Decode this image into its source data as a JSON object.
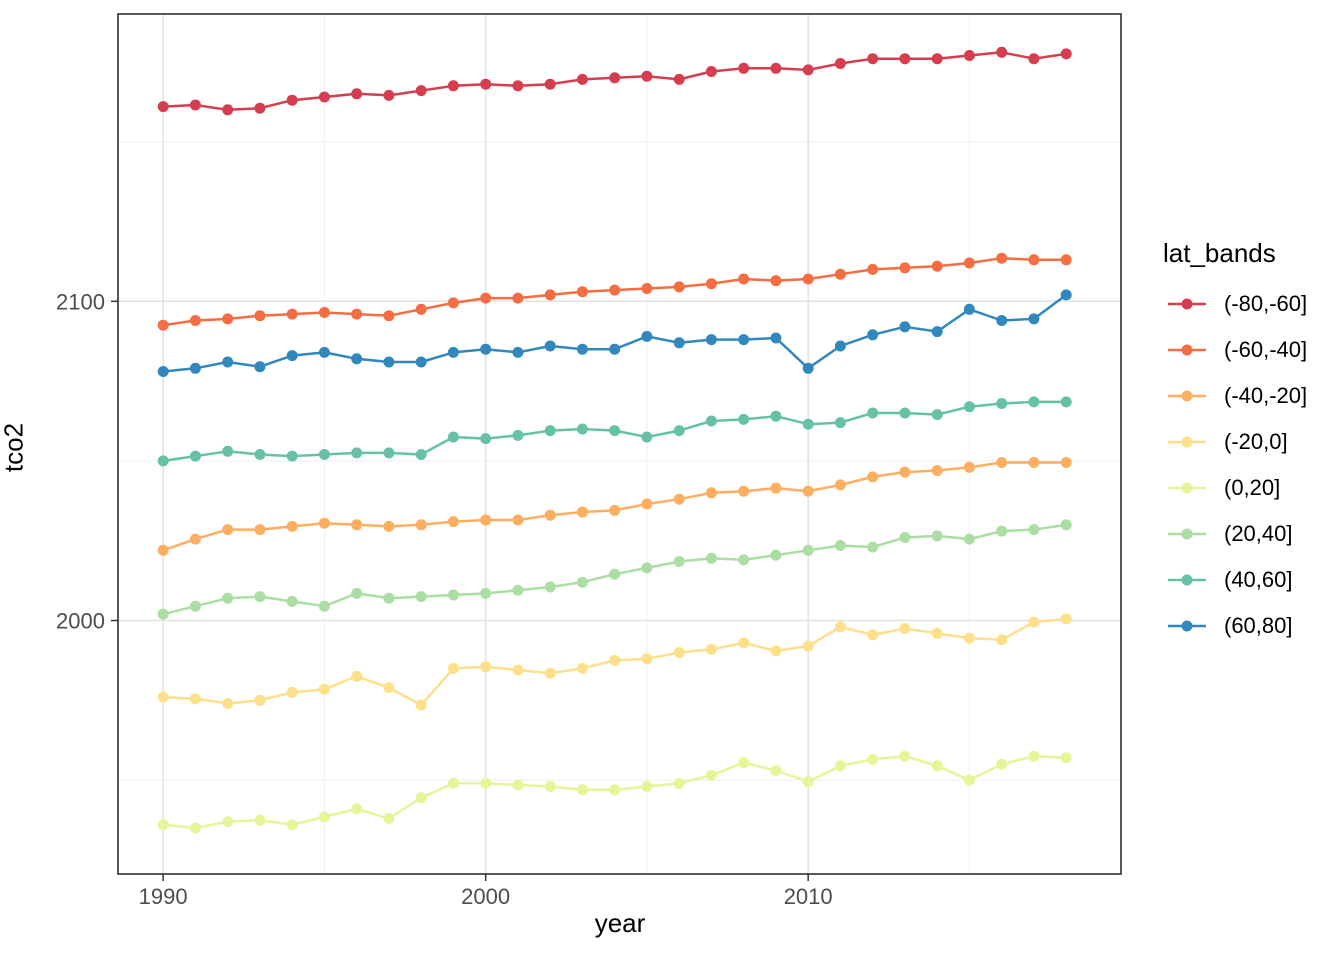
{
  "chart_data": {
    "type": "line",
    "title": "",
    "xlabel": "year",
    "ylabel": "tco2",
    "legend_title": "lat_bands",
    "legend_position": "right",
    "grid": true,
    "background": "#ffffff",
    "grid_major_color": "#e2e2e2",
    "grid_minor_color": "#efefef",
    "panel_border_color": "#2e2e2e",
    "tick_label_color": "#4d4d4d",
    "x": [
      1990,
      1991,
      1992,
      1993,
      1994,
      1995,
      1996,
      1997,
      1998,
      1999,
      2000,
      2001,
      2002,
      2003,
      2004,
      2005,
      2006,
      2007,
      2008,
      2009,
      2010,
      2011,
      2012,
      2013,
      2014,
      2015,
      2016,
      2017,
      2018
    ],
    "xticks": [
      1990,
      2000,
      2010
    ],
    "yticks": [
      2000,
      2100
    ],
    "x_minor": [
      1995,
      2005,
      2015
    ],
    "y_minor": [
      1950,
      2050,
      2150
    ],
    "xlim": [
      1988.6,
      2019.7
    ],
    "ylim": [
      1920.6,
      2190.0
    ],
    "series": [
      {
        "name": "(-80,-60]",
        "color": "#d53e4f",
        "values": [
          2161,
          2161.5,
          2160,
          2160.5,
          2163,
          2164,
          2165,
          2164.5,
          2166,
          2167.5,
          2168,
          2167.5,
          2168,
          2169.5,
          2170,
          2170.5,
          2169.5,
          2172,
          2173,
          2173,
          2172.5,
          2174.5,
          2176,
          2176,
          2176,
          2177,
          2178,
          2176,
          2177.5
        ]
      },
      {
        "name": "(-60,-40]",
        "color": "#f46d43",
        "values": [
          2092.5,
          2094,
          2094.5,
          2095.5,
          2096,
          2096.5,
          2096,
          2095.5,
          2097.5,
          2099.5,
          2101,
          2101,
          2102,
          2103,
          2103.5,
          2104,
          2104.5,
          2105.5,
          2107,
          2106.5,
          2107,
          2108.5,
          2110,
          2110.5,
          2111,
          2112,
          2113.5,
          2113,
          2113
        ]
      },
      {
        "name": "(-40,-20]",
        "color": "#fdae61",
        "values": [
          2022,
          2025.5,
          2028.5,
          2028.5,
          2029.5,
          2030.5,
          2030,
          2029.5,
          2030,
          2031,
          2031.5,
          2031.5,
          2033,
          2034,
          2034.5,
          2036.5,
          2038,
          2040,
          2040.5,
          2041.5,
          2040.5,
          2042.5,
          2045,
          2046.5,
          2047,
          2048,
          2049.5,
          2049.5,
          2049.5
        ]
      },
      {
        "name": "(-20,0]",
        "color": "#fee08b",
        "values": [
          1976,
          1975.5,
          1974,
          1975,
          1977.5,
          1978.5,
          1982.5,
          1979,
          1973.5,
          1985,
          1985.5,
          1984.5,
          1983.5,
          1985,
          1987.5,
          1988,
          1990,
          1991,
          1993,
          1990.5,
          1992,
          1998,
          1995.5,
          1997.5,
          1996,
          1994.5,
          1994,
          1999.5,
          2000.5
        ]
      },
      {
        "name": "(0,20]",
        "color": "#e6f598",
        "values": [
          1936,
          1935,
          1937,
          1937.5,
          1936,
          1938.5,
          1941,
          1938,
          1944.5,
          1949,
          1949,
          1948.5,
          1948,
          1947,
          1947,
          1948,
          1949,
          1951.5,
          1955.5,
          1953,
          1949.5,
          1954.5,
          1956.5,
          1957.5,
          1954.5,
          1950,
          1955,
          1957.5,
          1957
        ]
      },
      {
        "name": "(20,40]",
        "color": "#abdda4",
        "values": [
          2002,
          2004.5,
          2007,
          2007.5,
          2006,
          2004.5,
          2008.5,
          2007,
          2007.5,
          2008,
          2008.5,
          2009.5,
          2010.5,
          2012,
          2014.5,
          2016.5,
          2018.5,
          2019.5,
          2019,
          2020.5,
          2022,
          2023.5,
          2023,
          2026,
          2026.5,
          2025.5,
          2028,
          2028.5,
          2030
        ]
      },
      {
        "name": "(40,60]",
        "color": "#66c2a5",
        "values": [
          2050,
          2051.5,
          2053,
          2052,
          2051.5,
          2052,
          2052.5,
          2052.5,
          2052,
          2057.5,
          2057,
          2058,
          2059.5,
          2060,
          2059.5,
          2057.5,
          2059.5,
          2062.5,
          2063,
          2064,
          2061.5,
          2062,
          2065,
          2065,
          2064.5,
          2067,
          2068,
          2068.5,
          2068.5
        ]
      },
      {
        "name": "(60,80]",
        "color": "#3288bd",
        "values": [
          2078,
          2079,
          2081,
          2079.5,
          2083,
          2084,
          2082,
          2081,
          2081,
          2084,
          2085,
          2084,
          2086,
          2085,
          2085,
          2089,
          2087,
          2088,
          2088,
          2088.5,
          2079,
          2086,
          2089.5,
          2092,
          2090.5,
          2097.5,
          2094,
          2094.5,
          2102
        ]
      }
    ]
  }
}
